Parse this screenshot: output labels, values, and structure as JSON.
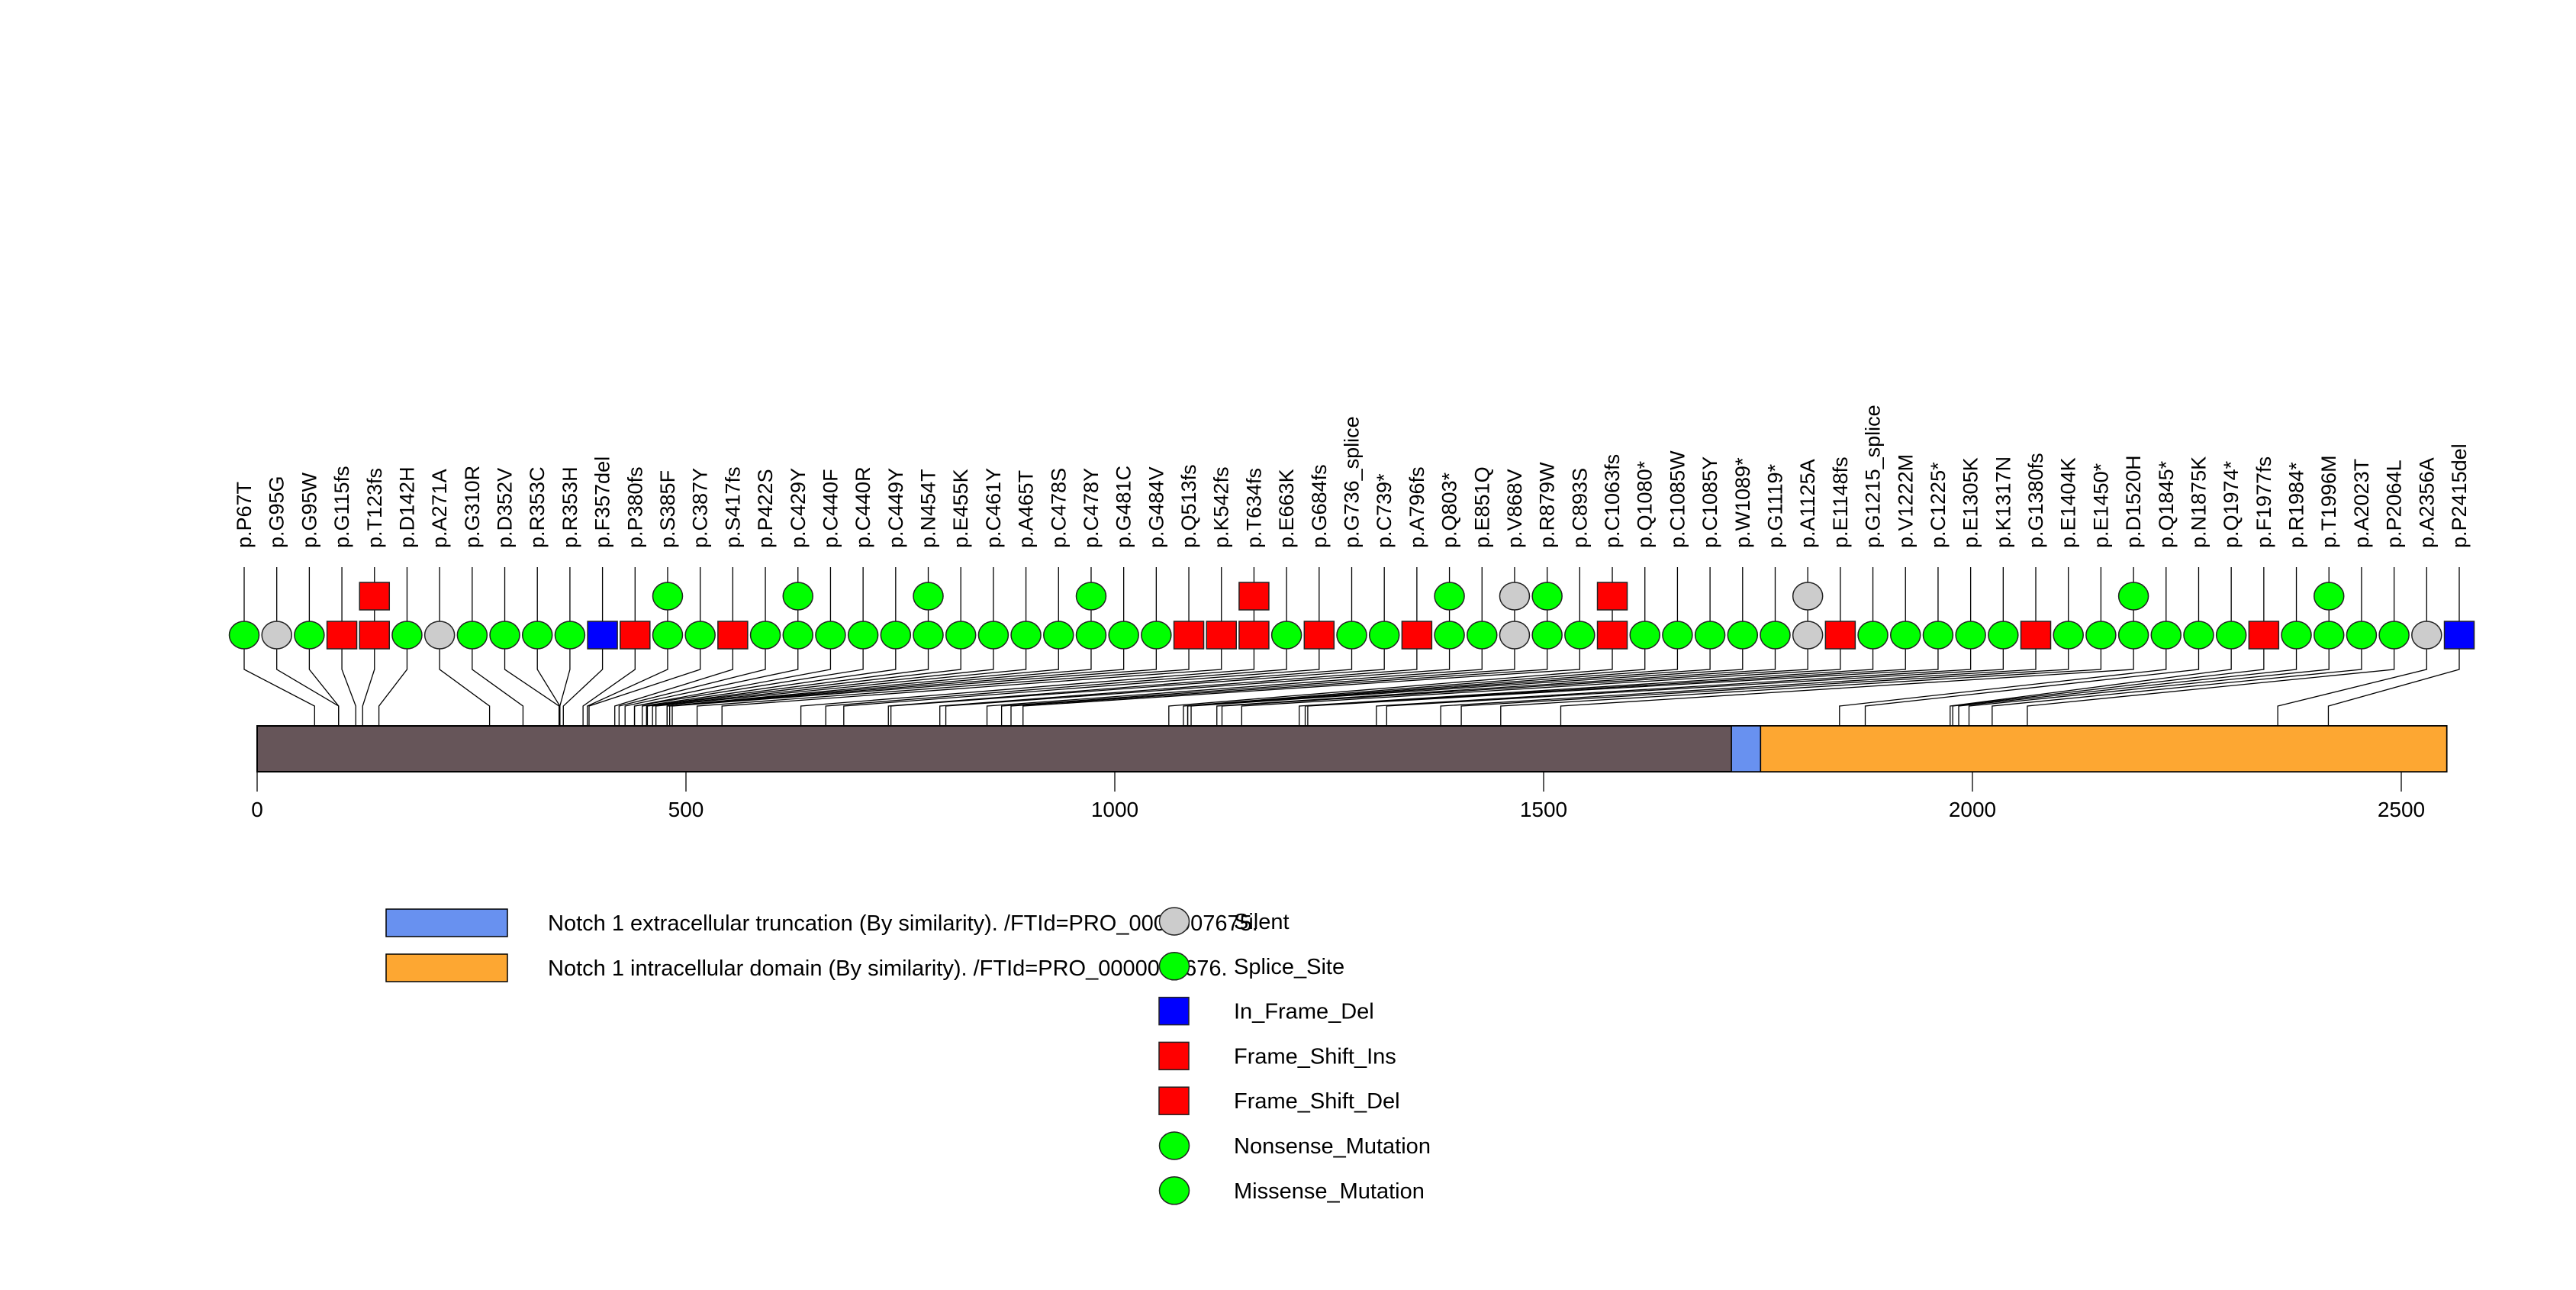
{
  "chart_data": {
    "type": "lollipop",
    "title": "",
    "protein_length": 2555,
    "xlim": [
      0,
      2555
    ],
    "x_ticks": [
      0,
      500,
      1000,
      1500,
      2000,
      2500
    ],
    "x_tick_labels": [
      "0",
      "500",
      "1000",
      "1500",
      "2000",
      "2500"
    ],
    "backbone_color": "#665559",
    "domains": [
      {
        "name": "Notch 1 extracellular truncation (By similarity). /FTId=PRO_0000007675.",
        "start": 1719,
        "end": 1753,
        "color": "#6891F0"
      },
      {
        "name": "Notch 1 intracellular domain (By similarity). /FTId=PRO_0000007676.",
        "start": 1753,
        "end": 2553,
        "color": "#FDA732"
      }
    ],
    "mutation_types": [
      {
        "name": "Silent",
        "shape": "circle",
        "color": "#CCCCCC"
      },
      {
        "name": "Splice_Site",
        "shape": "circle",
        "color": "#00FF00"
      },
      {
        "name": "In_Frame_Del",
        "shape": "square",
        "color": "#0000FF"
      },
      {
        "name": "Frame_Shift_Ins",
        "shape": "square",
        "color": "#FF0000"
      },
      {
        "name": "Frame_Shift_Del",
        "shape": "square",
        "color": "#FF0000"
      },
      {
        "name": "Nonsense_Mutation",
        "shape": "circle",
        "color": "#00FF00"
      },
      {
        "name": "Missense_Mutation",
        "shape": "circle",
        "color": "#00FF00"
      }
    ],
    "mutations": [
      {
        "label": "p.P67T",
        "pos": 67,
        "class": "missense",
        "count": 1
      },
      {
        "label": "p.G95G",
        "pos": 95,
        "class": "silent",
        "count": 1
      },
      {
        "label": "p.G95W",
        "pos": 95,
        "class": "missense",
        "count": 1
      },
      {
        "label": "p.G115fs",
        "pos": 115,
        "class": "frameshift",
        "count": 1
      },
      {
        "label": "p.T123fs",
        "pos": 123,
        "class": "frameshift",
        "count": 2
      },
      {
        "label": "p.D142H",
        "pos": 142,
        "class": "missense",
        "count": 1
      },
      {
        "label": "p.A271A",
        "pos": 271,
        "class": "silent",
        "count": 1
      },
      {
        "label": "p.G310R",
        "pos": 310,
        "class": "missense",
        "count": 1
      },
      {
        "label": "p.D352V",
        "pos": 352,
        "class": "missense",
        "count": 1
      },
      {
        "label": "p.R353C",
        "pos": 353,
        "class": "missense",
        "count": 1
      },
      {
        "label": "p.R353H",
        "pos": 353,
        "class": "missense",
        "count": 1
      },
      {
        "label": "p.F357del",
        "pos": 357,
        "class": "inframe_del",
        "count": 1
      },
      {
        "label": "p.P380fs",
        "pos": 380,
        "class": "frameshift",
        "count": 1
      },
      {
        "label": "p.S385F",
        "pos": 385,
        "class": "missense",
        "count": 2
      },
      {
        "label": "p.C387Y",
        "pos": 387,
        "class": "missense",
        "count": 1
      },
      {
        "label": "p.S417fs",
        "pos": 417,
        "class": "frameshift",
        "count": 1
      },
      {
        "label": "p.P422S",
        "pos": 422,
        "class": "missense",
        "count": 1
      },
      {
        "label": "p.C429Y",
        "pos": 429,
        "class": "missense",
        "count": 2
      },
      {
        "label": "p.C440F",
        "pos": 440,
        "class": "missense",
        "count": 1
      },
      {
        "label": "p.C440R",
        "pos": 440,
        "class": "missense",
        "count": 1
      },
      {
        "label": "p.C449Y",
        "pos": 449,
        "class": "missense",
        "count": 1
      },
      {
        "label": "p.N454T",
        "pos": 454,
        "class": "missense",
        "count": 2
      },
      {
        "label": "p.E455K",
        "pos": 455,
        "class": "missense",
        "count": 1
      },
      {
        "label": "p.C461Y",
        "pos": 461,
        "class": "missense",
        "count": 1
      },
      {
        "label": "p.A465T",
        "pos": 465,
        "class": "missense",
        "count": 1
      },
      {
        "label": "p.C478S",
        "pos": 478,
        "class": "missense",
        "count": 1
      },
      {
        "label": "p.C478Y",
        "pos": 478,
        "class": "missense",
        "count": 2
      },
      {
        "label": "p.G481C",
        "pos": 481,
        "class": "missense",
        "count": 1
      },
      {
        "label": "p.G484V",
        "pos": 484,
        "class": "missense",
        "count": 1
      },
      {
        "label": "p.Q513fs",
        "pos": 513,
        "class": "frameshift",
        "count": 1
      },
      {
        "label": "p.K542fs",
        "pos": 542,
        "class": "frameshift",
        "count": 1
      },
      {
        "label": "p.T634fs",
        "pos": 634,
        "class": "frameshift",
        "count": 2
      },
      {
        "label": "p.E663K",
        "pos": 663,
        "class": "missense",
        "count": 1
      },
      {
        "label": "p.G684fs",
        "pos": 684,
        "class": "frameshift",
        "count": 1
      },
      {
        "label": "p.G736_splice",
        "pos": 736,
        "class": "splice",
        "count": 1
      },
      {
        "label": "p.C739*",
        "pos": 739,
        "class": "nonsense",
        "count": 1
      },
      {
        "label": "p.A796fs",
        "pos": 796,
        "class": "frameshift",
        "count": 1
      },
      {
        "label": "p.Q803*",
        "pos": 803,
        "class": "nonsense",
        "count": 2
      },
      {
        "label": "p.E851Q",
        "pos": 851,
        "class": "missense",
        "count": 1
      },
      {
        "label": "p.V868V",
        "pos": 868,
        "class": "silent",
        "count": 2
      },
      {
        "label": "p.R879W",
        "pos": 879,
        "class": "missense",
        "count": 2
      },
      {
        "label": "p.C893S",
        "pos": 893,
        "class": "missense",
        "count": 1
      },
      {
        "label": "p.C1063fs",
        "pos": 1063,
        "class": "frameshift",
        "count": 2
      },
      {
        "label": "p.Q1080*",
        "pos": 1080,
        "class": "nonsense",
        "count": 1
      },
      {
        "label": "p.C1085W",
        "pos": 1085,
        "class": "missense",
        "count": 1
      },
      {
        "label": "p.C1085Y",
        "pos": 1085,
        "class": "missense",
        "count": 1
      },
      {
        "label": "p.W1089*",
        "pos": 1089,
        "class": "nonsense",
        "count": 1
      },
      {
        "label": "p.G1119*",
        "pos": 1119,
        "class": "nonsense",
        "count": 1
      },
      {
        "label": "p.A1125A",
        "pos": 1125,
        "class": "silent",
        "count": 2
      },
      {
        "label": "p.E1148fs",
        "pos": 1148,
        "class": "frameshift",
        "count": 1
      },
      {
        "label": "p.G1215_splice",
        "pos": 1215,
        "class": "splice",
        "count": 1
      },
      {
        "label": "p.V1222M",
        "pos": 1222,
        "class": "missense",
        "count": 1
      },
      {
        "label": "p.C1225*",
        "pos": 1225,
        "class": "nonsense",
        "count": 1
      },
      {
        "label": "p.E1305K",
        "pos": 1305,
        "class": "missense",
        "count": 1
      },
      {
        "label": "p.K1317N",
        "pos": 1317,
        "class": "missense",
        "count": 1
      },
      {
        "label": "p.G1380fs",
        "pos": 1380,
        "class": "frameshift",
        "count": 1
      },
      {
        "label": "p.E1404K",
        "pos": 1404,
        "class": "missense",
        "count": 1
      },
      {
        "label": "p.E1450*",
        "pos": 1450,
        "class": "nonsense",
        "count": 1
      },
      {
        "label": "p.D1520H",
        "pos": 1520,
        "class": "missense",
        "count": 2
      },
      {
        "label": "p.Q1845*",
        "pos": 1845,
        "class": "nonsense",
        "count": 1
      },
      {
        "label": "p.N1875K",
        "pos": 1875,
        "class": "missense",
        "count": 1
      },
      {
        "label": "p.Q1974*",
        "pos": 1974,
        "class": "nonsense",
        "count": 1
      },
      {
        "label": "p.F1977fs",
        "pos": 1977,
        "class": "frameshift",
        "count": 1
      },
      {
        "label": "p.R1984*",
        "pos": 1984,
        "class": "nonsense",
        "count": 1
      },
      {
        "label": "p.T1996M",
        "pos": 1996,
        "class": "missense",
        "count": 2
      },
      {
        "label": "p.A2023T",
        "pos": 2023,
        "class": "missense",
        "count": 1
      },
      {
        "label": "p.P2064L",
        "pos": 2064,
        "class": "missense",
        "count": 1
      },
      {
        "label": "p.A2356A",
        "pos": 2356,
        "class": "silent",
        "count": 1
      },
      {
        "label": "p.P2415del",
        "pos": 2415,
        "class": "inframe_del",
        "count": 1
      }
    ],
    "class_styles": {
      "missense": {
        "shape": "circle",
        "color": "#00FF00"
      },
      "nonsense": {
        "shape": "circle",
        "color": "#00FF00"
      },
      "splice": {
        "shape": "circle",
        "color": "#00FF00"
      },
      "silent": {
        "shape": "circle",
        "color": "#CCCCCC"
      },
      "frameshift": {
        "shape": "square",
        "color": "#FF0000"
      },
      "inframe_del": {
        "shape": "square",
        "color": "#0000FF"
      }
    }
  }
}
